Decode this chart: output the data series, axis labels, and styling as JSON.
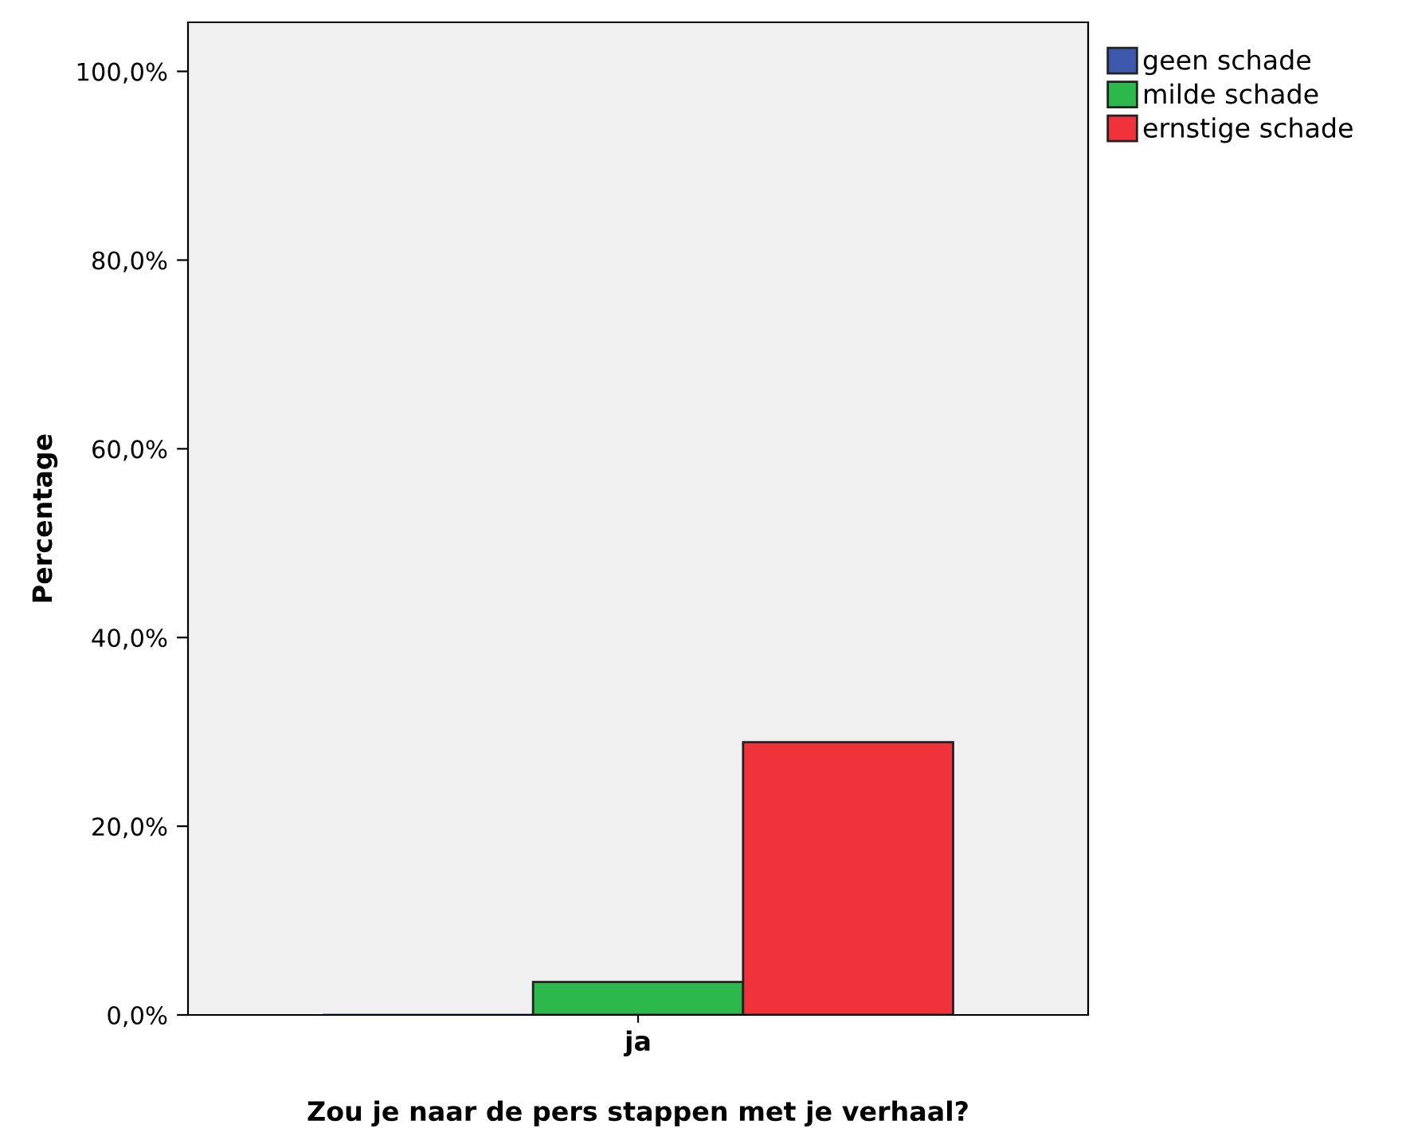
{
  "chart_data": {
    "type": "bar",
    "xlabel": "Zou je naar de pers stappen met je verhaal?",
    "ylabel": "Percentage",
    "categories": [
      "ja"
    ],
    "series": [
      {
        "name": "geen schade",
        "color": "#3e58ac",
        "values": [
          0
        ]
      },
      {
        "name": "milde schade",
        "color": "#2db84b",
        "values": [
          3.5
        ]
      },
      {
        "name": "ernstige schade",
        "color": "#f0323a",
        "values": [
          28.9
        ]
      }
    ],
    "ylim": [
      0,
      105.2
    ],
    "yticks": [
      {
        "value": 0,
        "label": "0,0%"
      },
      {
        "value": 20,
        "label": "20,0%"
      },
      {
        "value": 40,
        "label": "40,0%"
      },
      {
        "value": 60,
        "label": "60,0%"
      },
      {
        "value": 80,
        "label": "80,0%"
      },
      {
        "value": 100,
        "label": "100,0%"
      }
    ],
    "grid": false,
    "legend": "top right"
  }
}
